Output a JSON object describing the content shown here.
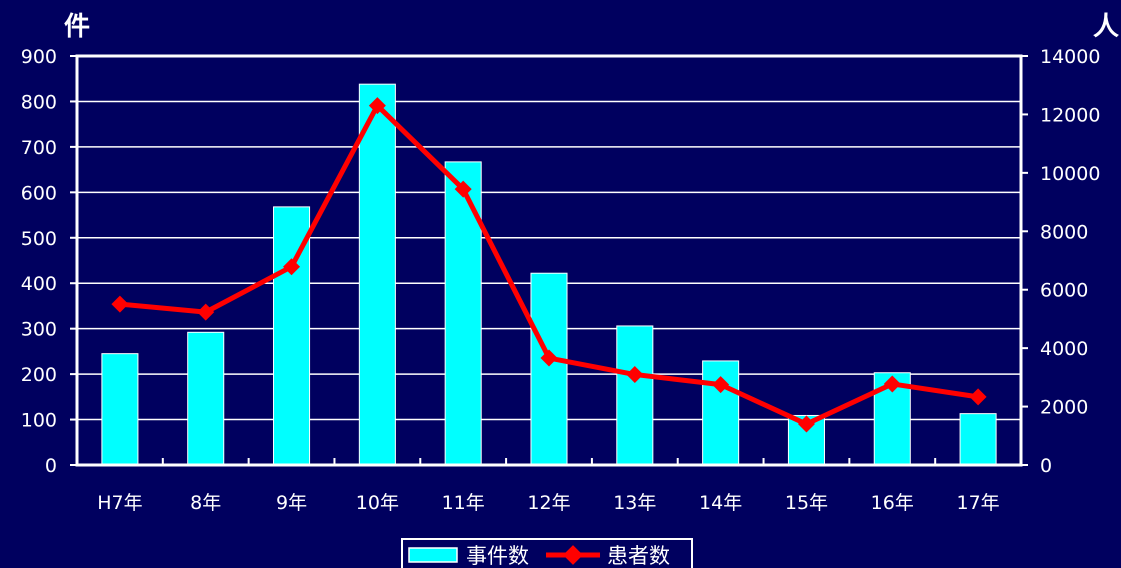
{
  "chart_data": {
    "type": "bar+line",
    "categories": [
      "H7年",
      "8年",
      "9年",
      "10年",
      "11年",
      "12年",
      "13年",
      "14年",
      "15年",
      "16年",
      "17年"
    ],
    "series": [
      {
        "name": "事件数",
        "type": "bar",
        "axis": "left",
        "color": "#00ffff",
        "values": [
          245,
          292,
          568,
          838,
          667,
          422,
          306,
          229,
          109,
          203,
          113
        ]
      },
      {
        "name": "患者数",
        "type": "line",
        "axis": "right",
        "color": "#ff0000",
        "values": [
          5508,
          5233,
          6787,
          12301,
          9444,
          3661,
          3097,
          2752,
          1402,
          2774,
          2333
        ]
      }
    ],
    "left_axis": {
      "unit_label": "件",
      "ylim": [
        0,
        900
      ],
      "ticks": [
        "0",
        "100",
        "200",
        "300",
        "400",
        "500",
        "600",
        "700",
        "800",
        "900"
      ]
    },
    "right_axis": {
      "unit_label": "人",
      "ylim": [
        0,
        14000
      ],
      "ticks": [
        "0",
        "2000",
        "4000",
        "6000",
        "8000",
        "10000",
        "12000",
        "14000"
      ]
    },
    "grid": true,
    "legend_position": "bottom-center",
    "colors": {
      "background": "#00005f",
      "text": "#ffffff",
      "bar": "#00ffff",
      "line": "#ff0000"
    }
  }
}
